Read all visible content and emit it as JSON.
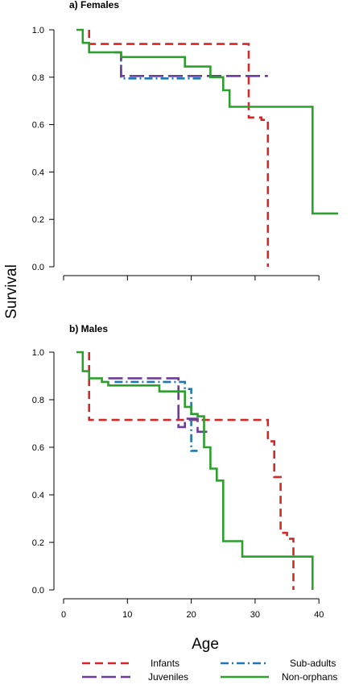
{
  "chart_data": {
    "type": "line",
    "xlabel": "Age",
    "ylabel": "Survival",
    "xlim": [
      0,
      43
    ],
    "xticks": [
      "0",
      "10",
      "20",
      "30",
      "40"
    ],
    "ylim": [
      0,
      1
    ],
    "yticks": [
      "0.0",
      "0.2",
      "0.4",
      "0.6",
      "0.8",
      "1.0"
    ],
    "grid": false,
    "legend": {
      "placement": "bottom",
      "entries": [
        {
          "name": "Infants",
          "color": "#d62728",
          "dash": "dashed"
        },
        {
          "name": "Sub-adults",
          "color": "#1f77b4",
          "dash": "dotdash"
        },
        {
          "name": "Juveniles",
          "color": "#6a3d9a",
          "dash": "longdash"
        },
        {
          "name": "Non-orphans",
          "color": "#2ca02c",
          "dash": "solid"
        }
      ]
    },
    "panels": [
      {
        "title": "a) Females",
        "series": [
          {
            "name": "Infants",
            "x": [
              4,
              4,
              29,
              29,
              31,
              31,
              32,
              32
            ],
            "y": [
              1.0,
              0.94,
              0.94,
              0.63,
              0.63,
              0.62,
              0.62,
              0.0
            ]
          },
          {
            "name": "Sub-adults",
            "x": [
              9,
              9,
              22
            ],
            "y": [
              0.9,
              0.795,
              0.795
            ]
          },
          {
            "name": "Juveniles",
            "x": [
              8,
              9,
              9,
              32
            ],
            "y": [
              0.905,
              0.905,
              0.805,
              0.805
            ]
          },
          {
            "name": "Non-orphans",
            "x": [
              2,
              3,
              3,
              4,
              4,
              9,
              9,
              19,
              19,
              23,
              23,
              25,
              25,
              26,
              26,
              39,
              39,
              43
            ],
            "y": [
              1.0,
              1.0,
              0.945,
              0.945,
              0.905,
              0.905,
              0.885,
              0.885,
              0.845,
              0.845,
              0.8,
              0.8,
              0.745,
              0.745,
              0.675,
              0.675,
              0.225,
              0.225
            ]
          }
        ]
      },
      {
        "title": "b) Males",
        "series": [
          {
            "name": "Infants",
            "x": [
              4,
              4,
              32,
              32,
              33,
              33,
              34,
              34,
              35,
              35,
              36,
              36
            ],
            "y": [
              1.0,
              0.715,
              0.715,
              0.625,
              0.625,
              0.475,
              0.475,
              0.24,
              0.24,
              0.215,
              0.215,
              0.0
            ]
          },
          {
            "name": "Sub-adults",
            "x": [
              8,
              19,
              19,
              20,
              20,
              21
            ],
            "y": [
              0.875,
              0.875,
              0.845,
              0.845,
              0.585,
              0.585
            ]
          },
          {
            "name": "Juveniles",
            "x": [
              7,
              18,
              18,
              19,
              19,
              21,
              21,
              23
            ],
            "y": [
              0.89,
              0.89,
              0.685,
              0.685,
              0.72,
              0.72,
              0.665,
              0.665
            ]
          },
          {
            "name": "Non-orphans",
            "x": [
              2,
              3,
              3,
              4,
              4,
              6,
              6,
              7,
              7,
              15,
              15,
              19,
              19,
              20,
              20,
              21,
              21,
              22,
              22,
              23,
              23,
              24,
              24,
              25,
              25,
              28,
              28,
              39,
              39
            ],
            "y": [
              1.0,
              1.0,
              0.92,
              0.92,
              0.89,
              0.89,
              0.875,
              0.875,
              0.86,
              0.86,
              0.835,
              0.835,
              0.77,
              0.77,
              0.74,
              0.74,
              0.73,
              0.73,
              0.6,
              0.6,
              0.51,
              0.51,
              0.46,
              0.46,
              0.205,
              0.205,
              0.14,
              0.14,
              0.0
            ]
          }
        ]
      }
    ]
  }
}
